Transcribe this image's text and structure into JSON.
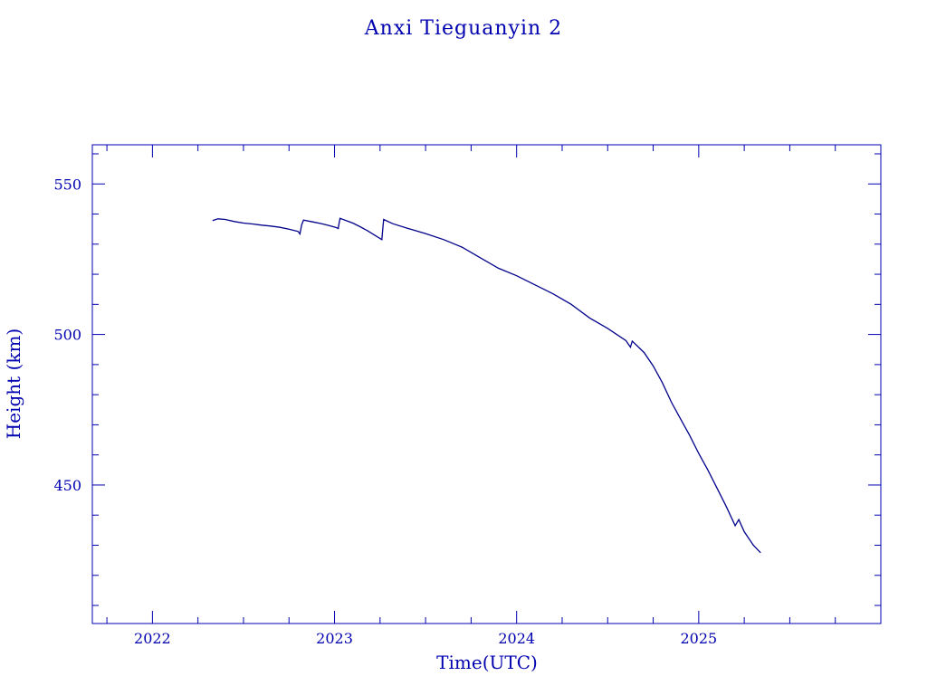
{
  "chart_data": {
    "type": "line",
    "title": "Anxi Tieguanyin 2",
    "xlabel": "Time(UTC)",
    "ylabel": "Height (km)",
    "xlim": [
      2021.67,
      2026.0
    ],
    "ylim": [
      404,
      563
    ],
    "x_ticks": [
      2022,
      2023,
      2024,
      2025
    ],
    "y_ticks": [
      450,
      500,
      550
    ],
    "x_minor_step": 0.25,
    "y_minor_step": 10,
    "grid": false,
    "series": [
      {
        "points": [
          [
            2022.33,
            537.8
          ],
          [
            2022.36,
            538.4
          ],
          [
            2022.4,
            538.2
          ],
          [
            2022.45,
            537.5
          ],
          [
            2022.5,
            537.0
          ],
          [
            2022.55,
            536.7
          ],
          [
            2022.6,
            536.3
          ],
          [
            2022.65,
            536.0
          ],
          [
            2022.7,
            535.6
          ],
          [
            2022.75,
            535.0
          ],
          [
            2022.8,
            534.2
          ],
          [
            2022.81,
            533.4
          ],
          [
            2022.82,
            536.5
          ],
          [
            2022.83,
            538.0
          ],
          [
            2022.88,
            537.4
          ],
          [
            2022.93,
            536.8
          ],
          [
            2022.97,
            536.2
          ],
          [
            2023.01,
            535.5
          ],
          [
            2023.02,
            535.2
          ],
          [
            2023.025,
            537.0
          ],
          [
            2023.03,
            538.6
          ],
          [
            2023.06,
            537.9
          ],
          [
            2023.1,
            537.0
          ],
          [
            2023.14,
            535.8
          ],
          [
            2023.18,
            534.5
          ],
          [
            2023.22,
            533.0
          ],
          [
            2023.26,
            531.5
          ],
          [
            2023.265,
            535.0
          ],
          [
            2023.27,
            538.2
          ],
          [
            2023.32,
            536.8
          ],
          [
            2023.4,
            535.3
          ],
          [
            2023.5,
            533.5
          ],
          [
            2023.6,
            531.5
          ],
          [
            2023.7,
            529.0
          ],
          [
            2023.8,
            525.5
          ],
          [
            2023.9,
            522.0
          ],
          [
            2024.0,
            519.5
          ],
          [
            2024.1,
            516.5
          ],
          [
            2024.2,
            513.5
          ],
          [
            2024.3,
            510.0
          ],
          [
            2024.4,
            505.5
          ],
          [
            2024.5,
            502.0
          ],
          [
            2024.6,
            498.0
          ],
          [
            2024.625,
            495.8
          ],
          [
            2024.635,
            497.8
          ],
          [
            2024.7,
            494.0
          ],
          [
            2024.75,
            489.5
          ],
          [
            2024.8,
            484.0
          ],
          [
            2024.85,
            477.5
          ],
          [
            2024.9,
            472.0
          ],
          [
            2024.95,
            466.5
          ],
          [
            2025.0,
            460.5
          ],
          [
            2025.05,
            455.0
          ],
          [
            2025.1,
            449.0
          ],
          [
            2025.15,
            443.0
          ],
          [
            2025.2,
            436.5
          ],
          [
            2025.22,
            438.5
          ],
          [
            2025.25,
            434.5
          ],
          [
            2025.3,
            430.0
          ],
          [
            2025.34,
            427.5
          ]
        ]
      }
    ]
  }
}
